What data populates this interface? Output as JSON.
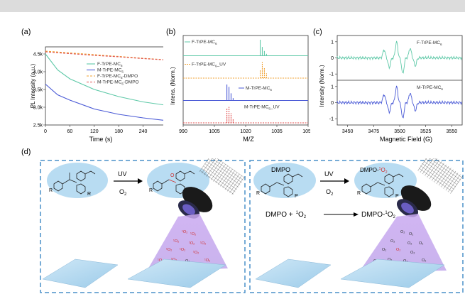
{
  "panels": {
    "a": {
      "label": "(a)",
      "xlabel": "Time (s)",
      "ylabel": "PL Intensity (a.u.)",
      "xticks": [
        "0",
        "60",
        "120",
        "180",
        "240",
        "300"
      ],
      "yticks": [
        "2.5k",
        "3.0k",
        "3.5k",
        "4.0k",
        "4.5k"
      ],
      "legend": [
        {
          "name": "F-TrPE-MC6",
          "base": "F-TrPE-MC",
          "sub": "6",
          "suffix": "",
          "color": "#5fc9a8",
          "dash": ""
        },
        {
          "name": "M-TrPE-MC6",
          "base": "M-TrPE-MC",
          "sub": "6",
          "suffix": "",
          "color": "#4a5ad6",
          "dash": ""
        },
        {
          "name": "F-TrPE-MC6-DMPO",
          "base": "F-TrPE-MC",
          "sub": "6",
          "suffix": "-DMPO",
          "color": "#f0a030",
          "dash": "3,2"
        },
        {
          "name": "M-TrPE-MC6-DMPO",
          "base": "M-TrPE-MC",
          "sub": "6",
          "suffix": "-DMPO",
          "color": "#e05050",
          "dash": "3,2"
        }
      ]
    },
    "b": {
      "label": "(b)",
      "xlabel": "M/Z",
      "ylabel": "Intens. (Norm.)",
      "xticks": [
        "990",
        "1005",
        "1020",
        "1035",
        "1050"
      ],
      "traces": [
        {
          "base": "F-TrPE-MC",
          "sub": "6",
          "suffix": "",
          "color": "#5fc9a8"
        },
        {
          "base": "F-TrPE-MC",
          "sub": "6",
          "suffix": "_UV",
          "color": "#f0a030"
        },
        {
          "base": "M-TrPE-MC",
          "sub": "6",
          "suffix": "",
          "color": "#4a5ad6"
        },
        {
          "base": "M-TrPE-MC",
          "sub": "6",
          "suffix": "_UV",
          "color": "#e05050"
        }
      ]
    },
    "c": {
      "label": "(c)",
      "xlabel": "Magnetic Field (G)",
      "ylabel": "Intensity (Norm.)",
      "xticks": [
        "3450",
        "3475",
        "3500",
        "3525",
        "3550"
      ],
      "yticks_top": [
        "1",
        "0",
        "-1"
      ],
      "yticks_bottom": [
        "1",
        "0",
        "-1"
      ],
      "traces": [
        {
          "base": "F-TrPE-MC",
          "sub": "6",
          "color": "#5fc9a8"
        },
        {
          "base": "M-TrPE-MC",
          "sub": "6",
          "color": "#4a5ad6"
        }
      ]
    },
    "d": {
      "label": "(d)",
      "uv": "UV",
      "o2": "O",
      "o2_sub": "2",
      "dmpo": "DMPO",
      "dmpo_adduct": "DMPO-",
      "eq_left": "DMPO +",
      "eq_o2": "O",
      "eq_right": "DMPO-",
      "singlet_sup": "1",
      "o2_sub2": "2",
      "r_label": "R",
      "p_label": "P"
    }
  },
  "colors": {
    "F": "#5fc9a8",
    "M": "#4a5ad6",
    "F_DMPO": "#f0a030",
    "M_DMPO": "#e05050",
    "box": "#4a90c8",
    "bubble": "#b8dcf2"
  },
  "chart_data": [
    {
      "type": "line",
      "title": "",
      "xlabel": "Time (s)",
      "ylabel": "PL Intensity (a.u.)",
      "xlim": [
        0,
        300
      ],
      "ylim": [
        2500,
        4700
      ],
      "series": [
        {
          "name": "F-TrPE-MC6",
          "x": [
            0,
            30,
            60,
            120,
            180,
            240,
            300
          ],
          "y": [
            4500,
            4050,
            3800,
            3500,
            3300,
            3150,
            3050
          ]
        },
        {
          "name": "M-TrPE-MC6",
          "x": [
            0,
            30,
            60,
            120,
            180,
            240,
            300
          ],
          "y": [
            3650,
            3350,
            3200,
            2950,
            2800,
            2700,
            2620
          ]
        },
        {
          "name": "F-TrPE-MC6-DMPO",
          "x": [
            0,
            60,
            120,
            180,
            240,
            300
          ],
          "y": [
            4580,
            4530,
            4480,
            4430,
            4380,
            4330
          ]
        },
        {
          "name": "M-TrPE-MC6-DMPO",
          "x": [
            0,
            60,
            120,
            180,
            240,
            300
          ],
          "y": [
            4560,
            4510,
            4460,
            4420,
            4370,
            4330
          ]
        }
      ]
    },
    {
      "type": "line",
      "xlabel": "M/Z",
      "ylabel": "Intens. (Norm.)",
      "xlim": [
        990,
        1050
      ],
      "series": [
        {
          "name": "F-TrPE-MC6",
          "x": [
            1027,
            1028,
            1029,
            1030
          ],
          "y": [
            1.0,
            0.55,
            0.3,
            0.12
          ]
        },
        {
          "name": "F-TrPE-MC6_UV",
          "x": [
            1027,
            1028,
            1029,
            1030
          ],
          "y": [
            0.5,
            1.0,
            0.65,
            0.3
          ]
        },
        {
          "name": "M-TrPE-MC6",
          "x": [
            1011,
            1012,
            1013,
            1014
          ],
          "y": [
            1.0,
            0.85,
            0.45,
            0.15
          ]
        },
        {
          "name": "M-TrPE-MC6_UV",
          "x": [
            1011,
            1012,
            1013,
            1014
          ],
          "y": [
            0.9,
            1.0,
            0.6,
            0.25
          ]
        }
      ]
    },
    {
      "type": "line",
      "xlabel": "Magnetic Field (G)",
      "ylabel": "Intensity (Norm.)",
      "xlim": [
        3440,
        3560
      ],
      "series": [
        {
          "name": "F-TrPE-MC6",
          "x": [
            3485,
            3490,
            3497,
            3503,
            3510,
            3515
          ],
          "y": [
            0.5,
            -0.6,
            1.0,
            -1.0,
            0.6,
            -0.5
          ]
        },
        {
          "name": "M-TrPE-MC6",
          "x": [
            3485,
            3490,
            3497,
            3503,
            3510,
            3515
          ],
          "y": [
            0.5,
            -0.6,
            1.0,
            -1.0,
            0.6,
            -0.5
          ]
        }
      ]
    }
  ]
}
